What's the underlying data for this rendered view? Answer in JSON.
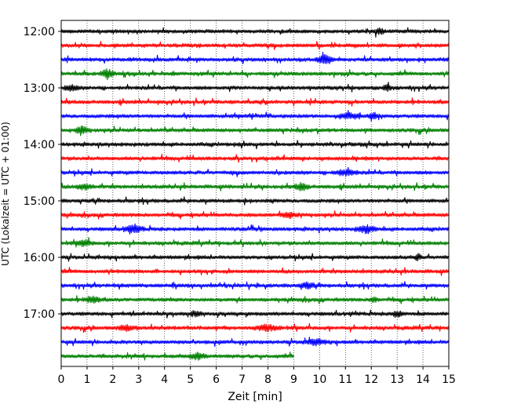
{
  "chart_data": {
    "type": "line",
    "xlabel": "Zeit  [min]",
    "ylabel": "UTC (Lokalzeit = UTC + 01:00)",
    "xlim": [
      0,
      15
    ],
    "x_ticks": [
      0,
      1,
      2,
      3,
      4,
      5,
      6,
      7,
      8,
      9,
      10,
      11,
      12,
      13,
      14,
      15
    ],
    "x_tick_labels": [
      "0",
      "1",
      "2",
      "3",
      "4",
      "5",
      "6",
      "7",
      "8",
      "9",
      "10",
      "11",
      "12",
      "13",
      "14",
      "15"
    ],
    "y_tick_labels": [
      "12:00",
      "13:00",
      "14:00",
      "15:00",
      "16:00",
      "17:00"
    ],
    "y_tick_rows": [
      0,
      4,
      8,
      12,
      16,
      20
    ],
    "trace_minutes": 15,
    "last_trace_end_min": 9,
    "grid": "vertical-dotted",
    "colors": [
      "#000000",
      "#ff0000",
      "#0000ff",
      "#008000"
    ],
    "traces": [
      {
        "label": "12:00",
        "color": "#000000",
        "bursts": [
          [
            12.3,
            0.3,
            3
          ]
        ]
      },
      {
        "label": "12:15",
        "color": "#ff0000",
        "bursts": []
      },
      {
        "label": "12:30",
        "color": "#0000ff",
        "bursts": [
          [
            10.2,
            0.45,
            5
          ]
        ]
      },
      {
        "label": "12:45",
        "color": "#008000",
        "bursts": [
          [
            1.8,
            0.35,
            5
          ]
        ]
      },
      {
        "label": "13:00",
        "color": "#000000",
        "bursts": [
          [
            0.4,
            0.35,
            3
          ],
          [
            12.6,
            0.2,
            3
          ]
        ]
      },
      {
        "label": "13:15",
        "color": "#ff0000",
        "bursts": []
      },
      {
        "label": "13:30",
        "color": "#0000ff",
        "bursts": [
          [
            11.2,
            0.5,
            3
          ],
          [
            12.1,
            0.3,
            3
          ]
        ]
      },
      {
        "label": "13:45",
        "color": "#008000",
        "bursts": [
          [
            0.8,
            0.35,
            4
          ]
        ]
      },
      {
        "label": "14:00",
        "color": "#000000",
        "bursts": []
      },
      {
        "label": "14:15",
        "color": "#ff0000",
        "bursts": []
      },
      {
        "label": "14:30",
        "color": "#0000ff",
        "bursts": [
          [
            11.0,
            0.6,
            3
          ]
        ]
      },
      {
        "label": "14:45",
        "color": "#008000",
        "bursts": [
          [
            0.9,
            0.4,
            3
          ],
          [
            9.3,
            0.35,
            4
          ]
        ]
      },
      {
        "label": "15:00",
        "color": "#000000",
        "bursts": []
      },
      {
        "label": "15:15",
        "color": "#ff0000",
        "bursts": [
          [
            8.8,
            0.4,
            3
          ]
        ]
      },
      {
        "label": "15:30",
        "color": "#0000ff",
        "bursts": [
          [
            2.8,
            0.5,
            4
          ],
          [
            11.8,
            0.5,
            4
          ]
        ]
      },
      {
        "label": "15:45",
        "color": "#008000",
        "bursts": [
          [
            0.9,
            0.4,
            3
          ]
        ]
      },
      {
        "label": "16:00",
        "color": "#000000",
        "bursts": [
          [
            13.8,
            0.2,
            3
          ]
        ]
      },
      {
        "label": "16:15",
        "color": "#ff0000",
        "bursts": []
      },
      {
        "label": "16:30",
        "color": "#0000ff",
        "bursts": [
          [
            9.5,
            0.35,
            3
          ]
        ]
      },
      {
        "label": "16:45",
        "color": "#008000",
        "bursts": [
          [
            1.2,
            0.35,
            4
          ],
          [
            12.1,
            0.2,
            3
          ]
        ]
      },
      {
        "label": "17:00",
        "color": "#000000",
        "bursts": [
          [
            5.2,
            0.3,
            3
          ],
          [
            13.0,
            0.3,
            3
          ]
        ]
      },
      {
        "label": "17:15",
        "color": "#ff0000",
        "bursts": [
          [
            2.5,
            0.4,
            3
          ],
          [
            8.0,
            0.6,
            3
          ]
        ]
      },
      {
        "label": "17:30",
        "color": "#0000ff",
        "bursts": [
          [
            9.8,
            0.6,
            3
          ]
        ]
      },
      {
        "label": "17:45",
        "color": "#008000",
        "bursts": [
          [
            5.3,
            0.4,
            4
          ]
        ]
      }
    ]
  }
}
